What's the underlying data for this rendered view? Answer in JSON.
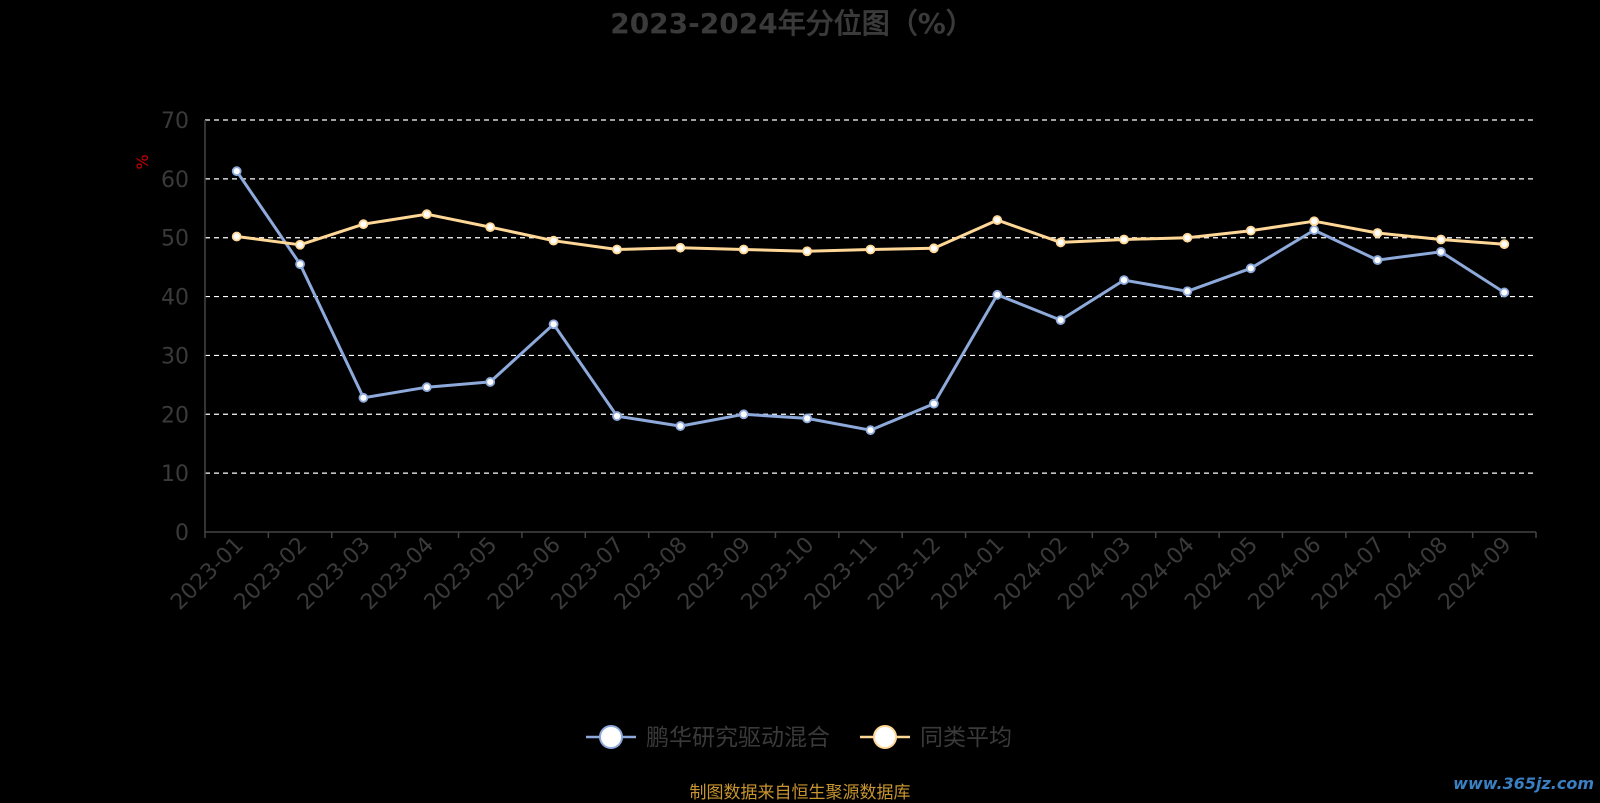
{
  "chart_data": {
    "type": "line",
    "title": "2023-2024年分位图（%）",
    "ylabel": "%",
    "ylim": [
      0,
      70
    ],
    "yticks": [
      0,
      10,
      20,
      30,
      40,
      50,
      60,
      70
    ],
    "grid": true,
    "legend_position": "bottom-center",
    "categories": [
      "2023-01",
      "2023-02",
      "2023-03",
      "2023-04",
      "2023-05",
      "2023-06",
      "2023-07",
      "2023-08",
      "2023-09",
      "2023-10",
      "2023-11",
      "2023-12",
      "2024-01",
      "2024-02",
      "2024-03",
      "2024-04",
      "2024-05",
      "2024-06",
      "2024-07",
      "2024-08",
      "2024-09"
    ],
    "series": [
      {
        "name": "鹏华研究驱动混合",
        "color": "#8eaadb",
        "values": [
          61.3,
          45.5,
          22.8,
          24.6,
          25.5,
          35.3,
          19.7,
          18.0,
          20.0,
          19.3,
          17.3,
          21.8,
          40.3,
          36.0,
          42.8,
          40.9,
          44.8,
          51.3,
          46.2,
          47.6,
          40.7
        ]
      },
      {
        "name": "同类平均",
        "color": "#ffd797",
        "values": [
          50.2,
          48.8,
          52.3,
          54.0,
          51.8,
          49.5,
          48.0,
          48.3,
          48.0,
          47.7,
          48.0,
          48.2,
          53.0,
          49.2,
          49.7,
          50.0,
          51.2,
          52.8,
          50.8,
          49.7,
          48.9
        ]
      }
    ]
  },
  "footer": {
    "source": "制图数据来自恒生聚源数据库",
    "watermark": "www.365jz.com"
  }
}
